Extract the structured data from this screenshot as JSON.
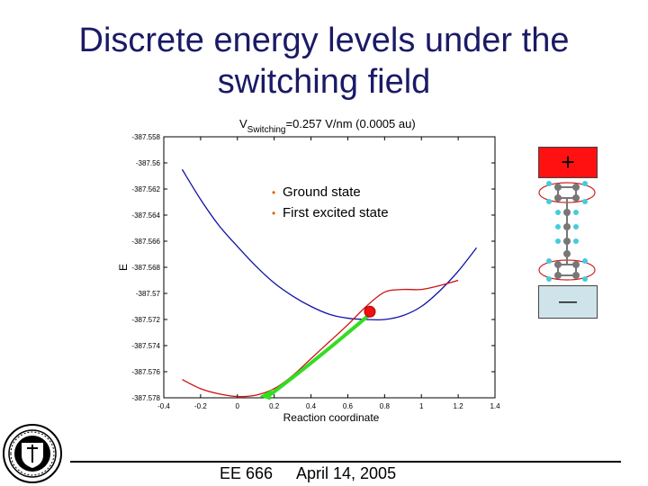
{
  "slide": {
    "title_line1": "Discrete energy levels under the",
    "title_line2": "switching field",
    "footer_course": "EE 666",
    "footer_date": "April 14, 2005",
    "plus_symbol": "+",
    "minus_symbol": "—"
  },
  "colors": {
    "title": "#1a1a66",
    "ground": "#cc1111",
    "excited": "#1111aa",
    "arrow": "#33dd22",
    "marker": "#ee1111",
    "legend_bullet": "#dd6600"
  },
  "chart_data": {
    "type": "line",
    "title_prefix": "V",
    "title_subscript": "Switching",
    "title_suffix": "=0.257 V/nm (0.0005 au)",
    "xlabel": "Reaction coordinate",
    "ylabel": "E",
    "xlim": [
      -0.4,
      1.4
    ],
    "ylim": [
      -387.578,
      -387.558
    ],
    "x_ticks": [
      -0.4,
      -0.2,
      0,
      0.2,
      0.4,
      0.6,
      0.8,
      1,
      1.2,
      1.4
    ],
    "x_tick_labels": [
      "-0.4",
      "-0.2",
      "0",
      "0.2",
      "0.4",
      "0.6",
      "0.8",
      "1",
      "1.2",
      "1.4"
    ],
    "y_ticks": [
      -387.558,
      -387.56,
      -387.562,
      -387.564,
      -387.566,
      -387.568,
      -387.57,
      -387.572,
      -387.574,
      -387.576,
      -387.578
    ],
    "y_tick_labels": [
      "-387.558",
      "-387.56",
      "-387.562",
      "-387.564",
      "-387.566",
      "-387.568",
      "-387.57",
      "-387.572",
      "-387.574",
      "-387.576",
      "-387.578"
    ],
    "legend": [
      "Ground state",
      "First excited state"
    ],
    "series": [
      {
        "name": "First excited state",
        "x": [
          -0.3,
          -0.2,
          -0.1,
          0.0,
          0.1,
          0.2,
          0.3,
          0.4,
          0.5,
          0.6,
          0.7,
          0.8,
          0.9,
          1.0,
          1.1,
          1.2,
          1.3
        ],
        "y": [
          -387.5605,
          -387.5628,
          -387.5648,
          -387.5664,
          -387.5679,
          -387.5692,
          -387.5702,
          -387.571,
          -387.5716,
          -387.5719,
          -387.572,
          -387.572,
          -387.5717,
          -387.571,
          -387.5698,
          -387.5683,
          -387.5665
        ]
      },
      {
        "name": "Ground state",
        "x": [
          -0.3,
          -0.2,
          -0.1,
          0.0,
          0.1,
          0.2,
          0.3,
          0.4,
          0.5,
          0.6,
          0.7,
          0.8,
          0.9,
          1.0,
          1.1,
          1.2
        ],
        "y": [
          -387.5766,
          -387.5773,
          -387.5777,
          -387.5779,
          -387.5778,
          -387.5773,
          -387.5763,
          -387.575,
          -387.5737,
          -387.5724,
          -387.571,
          -387.5699,
          -387.5697,
          -387.5697,
          -387.5694,
          -387.569
        ]
      }
    ],
    "annotations": {
      "marker": {
        "x": 0.72,
        "y": -387.5714
      },
      "arrow": {
        "from_x": 0.72,
        "from_y": -387.5716,
        "to_x": 0.12,
        "to_y": -387.5779
      }
    }
  }
}
